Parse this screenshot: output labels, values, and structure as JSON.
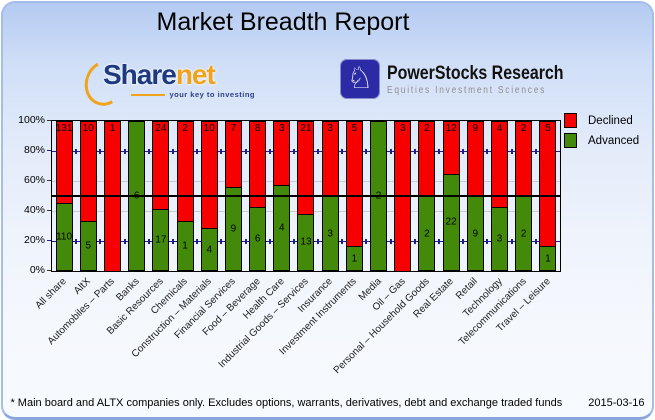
{
  "title": "Market Breadth Report",
  "logos": {
    "sharenet": {
      "part1": "Share",
      "part2": "net",
      "tagline": "your key to investing",
      "brand_navy": "#1d3a80",
      "brand_orange": "#f0a31d"
    },
    "powerstocks": {
      "line1": "PowerStocks  Research",
      "line2": "Equities Investment Sciences",
      "knight_glyph": "♘",
      "badge_color": "#2b2ba6"
    }
  },
  "chart_data": {
    "type": "bar",
    "stacked": true,
    "orientation": "vertical",
    "units": "percent of companies, labels show counts",
    "ylim": [
      0,
      100
    ],
    "y_ticks": [
      "100%",
      "80%",
      "60%",
      "40%",
      "20%",
      "0%"
    ],
    "grid": {
      "navy_lines_pct": [
        80,
        20
      ],
      "gray_lines_pct": [
        60,
        40
      ],
      "black_line_pct": 50
    },
    "legend_position": "right",
    "legend": [
      {
        "label": "Declined",
        "color": "#f70000"
      },
      {
        "label": "Advanced",
        "color": "#448a0a"
      }
    ],
    "categories": [
      "All share",
      "AltX",
      "Automobiles – Parts",
      "Banks",
      "Basic Resources",
      "Chemicals",
      "Construction – Materials",
      "Financial Services",
      "Food – Beverage",
      "Health Care",
      "Industrial Goods – Services",
      "Insurance",
      "Investment Instruments",
      "Media",
      "Oil – Gas",
      "Personal – Household Goods",
      "Real Estate",
      "Retail",
      "Technology",
      "Telecommunications",
      "Travel – Leisure"
    ],
    "series": [
      {
        "name": "Declined",
        "color": "#f70000",
        "values": [
          131,
          10,
          1,
          0,
          24,
          2,
          10,
          7,
          8,
          3,
          21,
          3,
          5,
          0,
          3,
          2,
          12,
          9,
          4,
          2,
          5
        ]
      },
      {
        "name": "Advanced",
        "color": "#448a0a",
        "values": [
          110,
          5,
          0,
          6,
          17,
          1,
          4,
          9,
          6,
          4,
          13,
          3,
          1,
          2,
          0,
          2,
          22,
          9,
          3,
          2,
          1
        ]
      }
    ]
  },
  "footer": {
    "note": "* Main board and ALTX companies only. Excludes options, warrants, derivatives, debt and exchange traded funds",
    "date": "2015-03-16"
  }
}
